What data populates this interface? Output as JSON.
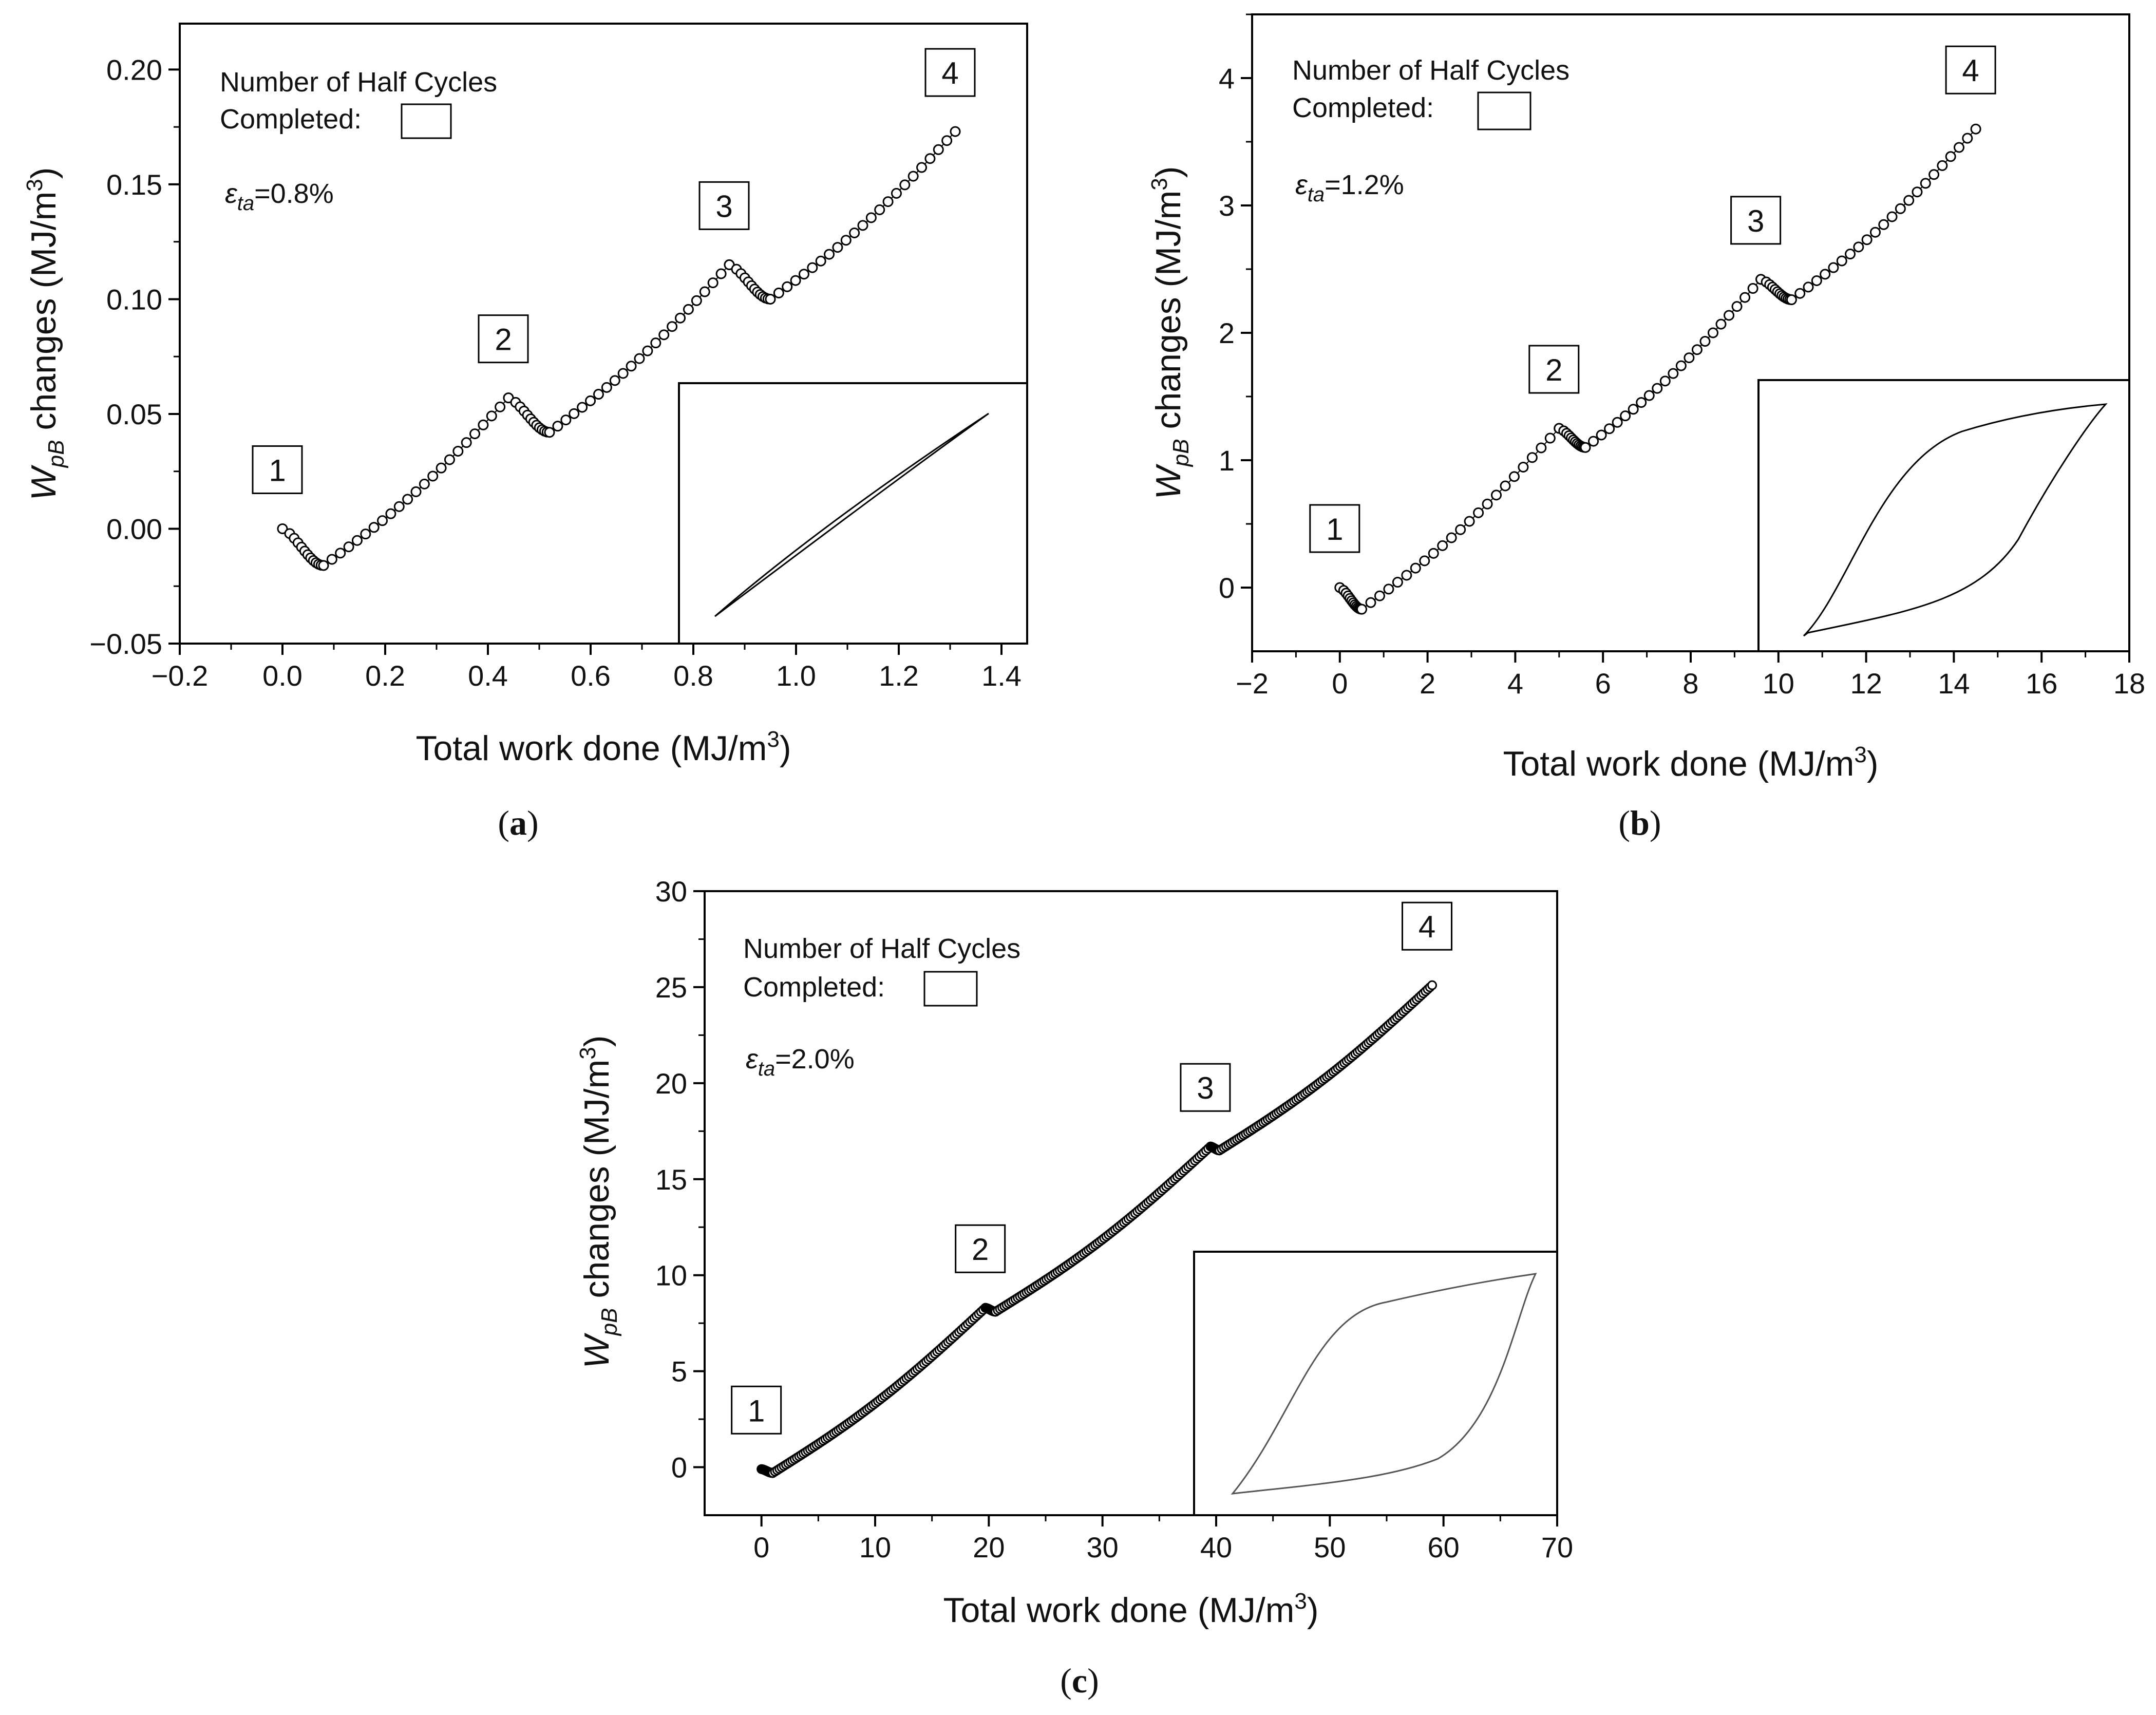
{
  "chart_data": [
    {
      "type": "scatter",
      "panel_label": "a",
      "xlabel": "Total work done (MJ/m",
      "xlabel_sup": "3",
      "ylabel_main": "W",
      "ylabel_sub": "pB",
      "ylabel_rest": " changes (MJ/m",
      "ylabel_sup": "3",
      "legend_line1": "Number of Half Cycles",
      "legend_line2": "Completed:",
      "strain_symbol": "ε",
      "strain_sub": "ta",
      "strain_value": "=0.8%",
      "xlim": [
        -0.2,
        1.45
      ],
      "ylim": [
        -0.05,
        0.22
      ],
      "xticks": [
        -0.2,
        0.0,
        0.2,
        0.4,
        0.6,
        0.8,
        1.0,
        1.2,
        1.4
      ],
      "xtick_labels": [
        "−0.2",
        "0.0",
        "0.2",
        "0.4",
        "0.6",
        "0.8",
        "1.0",
        "1.2",
        "1.4"
      ],
      "yticks": [
        -0.05,
        0.0,
        0.05,
        0.1,
        0.15,
        0.2
      ],
      "ytick_labels": [
        "−0.05",
        "0.00",
        "0.05",
        "0.10",
        "0.15",
        "0.20"
      ],
      "segments": [
        {
          "x_start": 0.0,
          "y_start": 0.0,
          "x_min": 0.08,
          "y_min": -0.016,
          "x_end": 0.44,
          "y_end": 0.057
        },
        {
          "x_start": 0.44,
          "y_start": 0.057,
          "x_min": 0.52,
          "y_min": 0.042,
          "x_end": 0.87,
          "y_end": 0.115
        },
        {
          "x_start": 0.87,
          "y_start": 0.115,
          "x_min": 0.95,
          "y_min": 0.1,
          "x_end": 1.31,
          "y_end": 0.173
        }
      ],
      "cycle_markers": [
        {
          "label": "1",
          "x": 0.0,
          "y": 0.0
        },
        {
          "label": "2",
          "x": 0.44,
          "y": 0.057
        },
        {
          "label": "3",
          "x": 0.87,
          "y": 0.115
        },
        {
          "label": "4",
          "x": 1.31,
          "y": 0.173
        }
      ],
      "inset": "hysteresis loop (narrow)"
    },
    {
      "type": "scatter",
      "panel_label": "b",
      "xlabel": "Total work done (MJ/m",
      "xlabel_sup": "3",
      "ylabel_main": "W",
      "ylabel_sub": "pB",
      "ylabel_rest": " changes (MJ/m",
      "ylabel_sup": "3",
      "legend_line1": "Number of Half Cycles",
      "legend_line2": "Completed:",
      "strain_symbol": "ε",
      "strain_sub": "ta",
      "strain_value": "=1.2%",
      "xlim": [
        -2,
        18
      ],
      "ylim": [
        -0.5,
        4.5
      ],
      "xticks": [
        -2,
        0,
        2,
        4,
        6,
        8,
        10,
        12,
        14,
        16,
        18
      ],
      "xtick_labels": [
        "−2",
        "0",
        "2",
        "4",
        "6",
        "8",
        "10",
        "12",
        "14",
        "16",
        "18"
      ],
      "yticks": [
        0,
        1,
        2,
        3,
        4
      ],
      "ytick_labels": [
        "0",
        "1",
        "2",
        "3",
        "4"
      ],
      "segments": [
        {
          "x_start": 0.0,
          "y_start": 0.0,
          "x_min": 0.5,
          "y_min": -0.17,
          "x_end": 5.0,
          "y_end": 1.25
        },
        {
          "x_start": 5.0,
          "y_start": 1.25,
          "x_min": 5.6,
          "y_min": 1.1,
          "x_end": 9.6,
          "y_end": 2.42
        },
        {
          "x_start": 9.6,
          "y_start": 2.42,
          "x_min": 10.3,
          "y_min": 2.26,
          "x_end": 14.5,
          "y_end": 3.6
        }
      ],
      "cycle_markers": [
        {
          "label": "1",
          "x": 0.0,
          "y": 0.0
        },
        {
          "label": "2",
          "x": 5.0,
          "y": 1.25
        },
        {
          "label": "3",
          "x": 9.6,
          "y": 2.42
        },
        {
          "label": "4",
          "x": 14.5,
          "y": 3.6
        }
      ],
      "inset": "hysteresis loop (medium)"
    },
    {
      "type": "scatter",
      "panel_label": "c",
      "xlabel": "Total work done (MJ/m",
      "xlabel_sup": "3",
      "ylabel_main": "W",
      "ylabel_sub": "pB",
      "ylabel_rest": " changes (MJ/m",
      "ylabel_sup": "3",
      "legend_line1": "Number of Half Cycles",
      "legend_line2": "Completed:",
      "strain_symbol": "ε",
      "strain_sub": "ta",
      "strain_value": "=2.0%",
      "xlim": [
        -5,
        70
      ],
      "ylim": [
        -2.5,
        30
      ],
      "xticks": [
        0,
        10,
        20,
        30,
        40,
        50,
        60,
        70
      ],
      "xtick_labels": [
        "0",
        "10",
        "20",
        "30",
        "40",
        "50",
        "60",
        "70"
      ],
      "yticks": [
        0,
        5,
        10,
        15,
        20,
        25,
        30
      ],
      "ytick_labels": [
        "0",
        "5",
        "10",
        "15",
        "20",
        "25",
        "30"
      ],
      "segments": [
        {
          "x_start": 0.0,
          "y_start": -0.1,
          "x_min": 1.0,
          "y_min": -0.3,
          "x_end": 19.7,
          "y_end": 8.3
        },
        {
          "x_start": 19.7,
          "y_start": 8.3,
          "x_min": 20.6,
          "y_min": 8.1,
          "x_end": 39.5,
          "y_end": 16.7
        },
        {
          "x_start": 39.5,
          "y_start": 16.7,
          "x_min": 40.3,
          "y_min": 16.5,
          "x_end": 59.0,
          "y_end": 25.1
        }
      ],
      "cycle_markers": [
        {
          "label": "1",
          "x": 0.0,
          "y": -0.1
        },
        {
          "label": "2",
          "x": 19.7,
          "y": 8.3
        },
        {
          "label": "3",
          "x": 39.5,
          "y": 16.7
        },
        {
          "label": "4",
          "x": 59.0,
          "y": 25.1
        }
      ],
      "inset": "hysteresis loop (wide)"
    }
  ]
}
